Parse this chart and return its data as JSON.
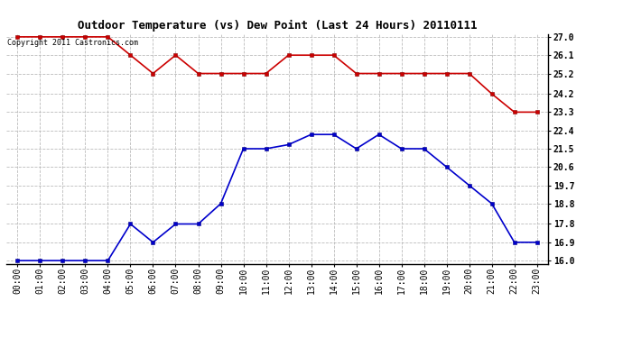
{
  "title": "Outdoor Temperature (vs) Dew Point (Last 24 Hours) 20110111",
  "copyright_text": "Copyright 2011 Castronics.com",
  "hours": [
    "00:00",
    "01:00",
    "02:00",
    "03:00",
    "04:00",
    "05:00",
    "06:00",
    "07:00",
    "08:00",
    "09:00",
    "10:00",
    "11:00",
    "12:00",
    "13:00",
    "14:00",
    "15:00",
    "16:00",
    "17:00",
    "18:00",
    "19:00",
    "20:00",
    "21:00",
    "22:00",
    "23:00"
  ],
  "temp_data": [
    16.0,
    16.0,
    16.0,
    16.0,
    16.0,
    17.8,
    16.9,
    17.8,
    17.8,
    18.8,
    21.5,
    21.5,
    21.7,
    22.2,
    22.2,
    21.5,
    22.2,
    21.5,
    21.5,
    20.6,
    19.7,
    18.8,
    16.9,
    16.9
  ],
  "dew_data": [
    27.0,
    27.0,
    27.0,
    27.0,
    27.0,
    26.1,
    25.2,
    26.1,
    25.2,
    25.2,
    25.2,
    25.2,
    26.1,
    26.1,
    26.1,
    25.2,
    25.2,
    25.2,
    25.2,
    25.2,
    25.2,
    24.2,
    23.3,
    23.3
  ],
  "temp_color": "#0000cc",
  "dew_color": "#cc0000",
  "background_color": "#ffffff",
  "plot_bg_color": "#ffffff",
  "grid_color": "#bbbbbb",
  "ylim_min": 16.0,
  "ylim_max": 27.0,
  "yticks": [
    16.0,
    16.9,
    17.8,
    18.8,
    19.7,
    20.6,
    21.5,
    22.4,
    23.3,
    24.2,
    25.2,
    26.1,
    27.0
  ],
  "title_fontsize": 9,
  "tick_fontsize": 7,
  "copyright_fontsize": 6,
  "markersize": 3,
  "linewidth": 1.2
}
